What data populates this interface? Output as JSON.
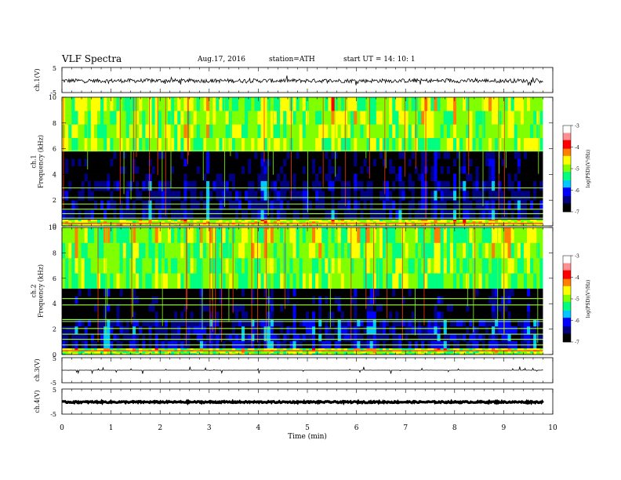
{
  "header": {
    "title": "VLF  Spectra",
    "date": "Aug.17, 2016",
    "station": "station=ATH",
    "start_ut": "start  UT  =    14: 10: 1"
  },
  "chart_data": [
    {
      "type": "line",
      "panel": "ch1-waveform",
      "ylabel": "ch.1(V)",
      "ylim": [
        -5,
        5
      ],
      "yticks": [
        "5",
        "-5"
      ],
      "xlim": [
        0,
        10
      ],
      "series": [
        {
          "values_description_only": false,
          "mean": -0.3,
          "amplitude": 0.8
        }
      ]
    },
    {
      "type": "heatmap",
      "panel": "ch1-spectrogram",
      "ylabel": "ch.1\nFrequency  (kHz)",
      "ylim": [
        0,
        10
      ],
      "yticks": [
        "0",
        "2",
        "4",
        "6",
        "8",
        "10"
      ],
      "xlim": [
        0,
        10
      ],
      "data_end_min": 9.8,
      "colorbar": {
        "label": "log(PSD)(V²/Hz)",
        "range": [
          -7,
          -3
        ],
        "ticks": [
          "-3",
          "-4",
          "-5",
          "-6",
          "-7"
        ]
      },
      "bands": [
        {
          "f_min": 0,
          "f_max": 0.5,
          "level": -4.8
        },
        {
          "f_min": 0.5,
          "f_max": 3.5,
          "level": -6.6
        },
        {
          "f_min": 3.5,
          "f_max": 5.8,
          "level": -6.9
        },
        {
          "f_min": 5.8,
          "f_max": 10,
          "level": -5.0
        }
      ],
      "lines_khz": [
        0.2,
        0.6,
        0.95,
        1.3,
        1.7,
        2.2,
        2.95,
        5.85
      ]
    },
    {
      "type": "heatmap",
      "panel": "ch2-spectrogram",
      "ylabel": "ch.2\nFrequency  (kHz)",
      "ylim": [
        0,
        10
      ],
      "yticks": [
        "0",
        "2",
        "4",
        "6",
        "8",
        "10"
      ],
      "xlim": [
        0,
        10
      ],
      "data_end_min": 9.8,
      "colorbar": {
        "label": "log(PSD)(V²/Hz)",
        "range": [
          -7,
          -3
        ],
        "ticks": [
          "-3",
          "-4",
          "-5",
          "-6",
          "-7"
        ]
      },
      "bands": [
        {
          "f_min": 0,
          "f_max": 0.5,
          "level": -5.0
        },
        {
          "f_min": 0.5,
          "f_max": 2.8,
          "level": -6.5
        },
        {
          "f_min": 2.8,
          "f_max": 5.2,
          "level": -6.95
        },
        {
          "f_min": 5.2,
          "f_max": 10,
          "level": -5.1
        }
      ],
      "lines_khz": [
        0.3,
        0.75,
        1.2,
        1.6,
        2.05,
        2.6,
        2.75,
        3.9,
        4.4
      ]
    },
    {
      "type": "line",
      "panel": "ch3-waveform",
      "ylabel": "ch.3(V)",
      "ylim": [
        -5,
        5
      ],
      "yticks": [
        "5",
        "-5"
      ],
      "xlim": [
        0,
        10
      ],
      "series": [
        {
          "mean": 0,
          "amplitude": 0.02
        }
      ]
    },
    {
      "type": "line",
      "panel": "ch4-waveform",
      "ylabel": "ch.4(V)",
      "ylim": [
        -5,
        5
      ],
      "yticks": [
        "5",
        "-5"
      ],
      "xlim": [
        0,
        10
      ],
      "xlabel": "Time  (min)",
      "xticks": [
        "0",
        "1",
        "2",
        "3",
        "4",
        "5",
        "6",
        "7",
        "8",
        "9",
        "10"
      ],
      "series": [
        {
          "mean": -0.2,
          "amplitude": 0.3
        }
      ]
    }
  ],
  "colors": {
    "scale": [
      "#000000",
      "#000080",
      "#0000ff",
      "#00c8ff",
      "#00ff80",
      "#80ff00",
      "#ffff00",
      "#ff8000",
      "#ff0000",
      "#ff9090",
      "#ffffff"
    ]
  }
}
